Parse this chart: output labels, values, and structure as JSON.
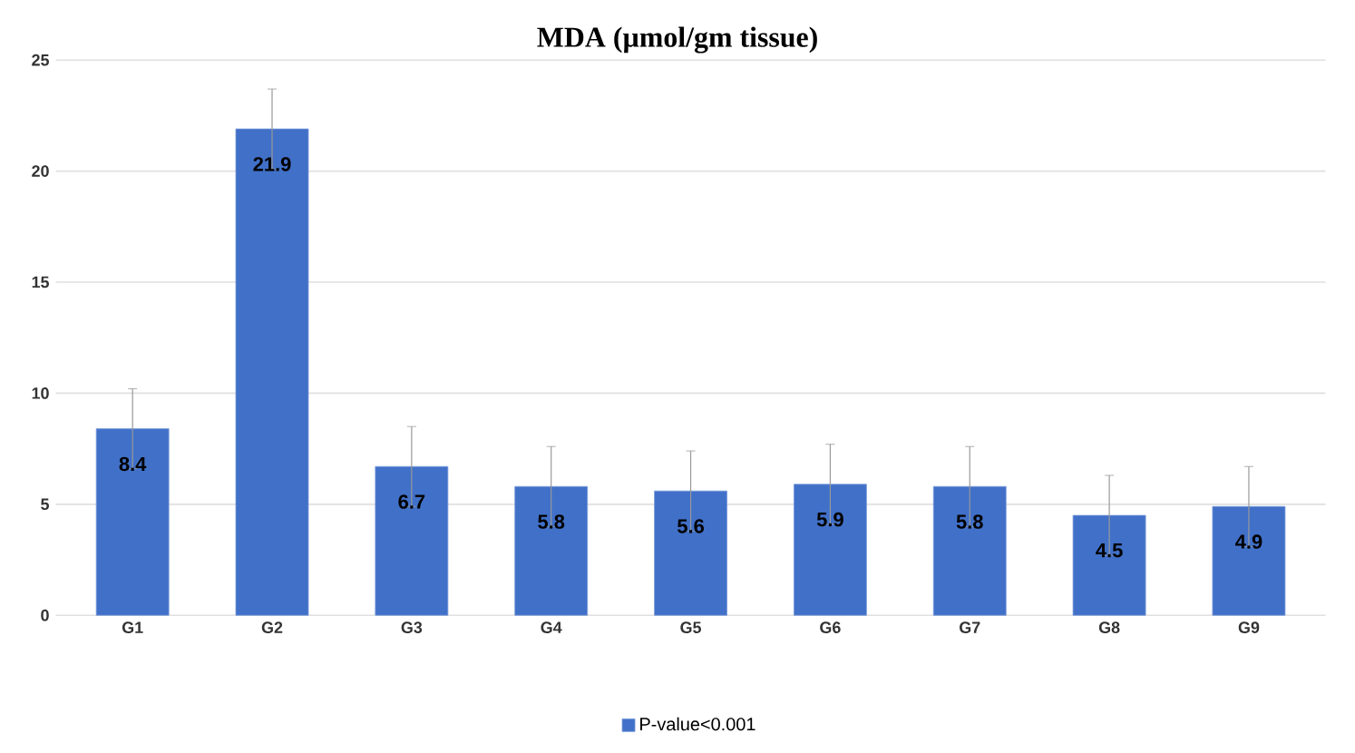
{
  "chart_data": {
    "type": "bar",
    "title": "MDA (µmol/gm tissue)",
    "categories": [
      "G1",
      "G2",
      "G3",
      "G4",
      "G5",
      "G6",
      "G7",
      "G8",
      "G9"
    ],
    "series": [
      {
        "name": "P-value<0.001",
        "color": "#4170c8",
        "values": [
          8.4,
          21.9,
          6.7,
          5.8,
          5.6,
          5.9,
          5.8,
          4.5,
          4.9
        ],
        "errors": [
          1.8,
          1.8,
          1.8,
          1.8,
          1.8,
          1.8,
          1.8,
          1.8,
          1.8
        ]
      }
    ],
    "ylim": [
      0,
      25
    ],
    "yticks": [
      0,
      5,
      10,
      15,
      20,
      25
    ],
    "grid": "y",
    "legend": "bottom",
    "data_labels": true
  }
}
